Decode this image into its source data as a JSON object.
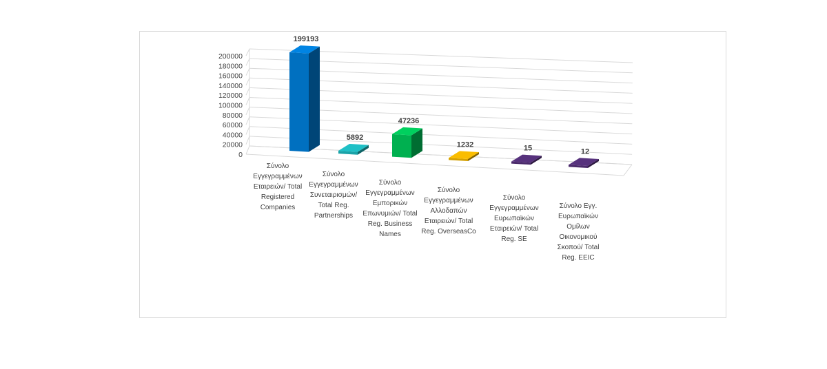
{
  "chart_data": {
    "type": "bar",
    "title": "",
    "xlabel": "",
    "ylabel": "",
    "ylim": [
      0,
      200000
    ],
    "yticks": [
      0,
      20000,
      40000,
      60000,
      80000,
      100000,
      120000,
      140000,
      160000,
      180000,
      200000
    ],
    "grid": true,
    "legend": "none",
    "categories": [
      [
        "Σύνολο",
        "Εγγεγραμμένων",
        "Εταιρειών/ Total",
        "Registered",
        "Companies"
      ],
      [
        "Σύνολο",
        "Εγγεγραμμένων",
        "Συνεταιρισμών/",
        "Total Reg.",
        "Partnerships"
      ],
      [
        "Σύνολο",
        "Εγγεγραμμένων",
        "Εμπορικών",
        "Επωνυμιών/ Total",
        "Reg. Business",
        "Names"
      ],
      [
        "Σύνολο",
        "Εγγεγραμμένων",
        "Αλλοδαπών",
        "Εταιρειών/ Total",
        "Reg. OverseasCo"
      ],
      [
        "Σύνολο",
        "Εγγεγραμμένων",
        "Ευρωπαϊκών",
        "Εταιρειών/ Total",
        "Reg. SE"
      ],
      [
        "Σύνολο Εγγ.",
        "Ευρωπαϊκών",
        "Ομίλων",
        "Οικονομικού",
        "Σκοπού/ Total",
        "Reg. EEIC"
      ]
    ],
    "values": [
      199193,
      5892,
      47236,
      1232,
      15,
      12
    ],
    "data_labels": [
      "199193",
      "5892",
      "47236",
      "1232",
      "15",
      "12"
    ],
    "colors": [
      "#0070c0",
      "#1aa3a8",
      "#00b050",
      "#d4a000",
      "#4a2a6a",
      "#4a2a6a"
    ]
  }
}
